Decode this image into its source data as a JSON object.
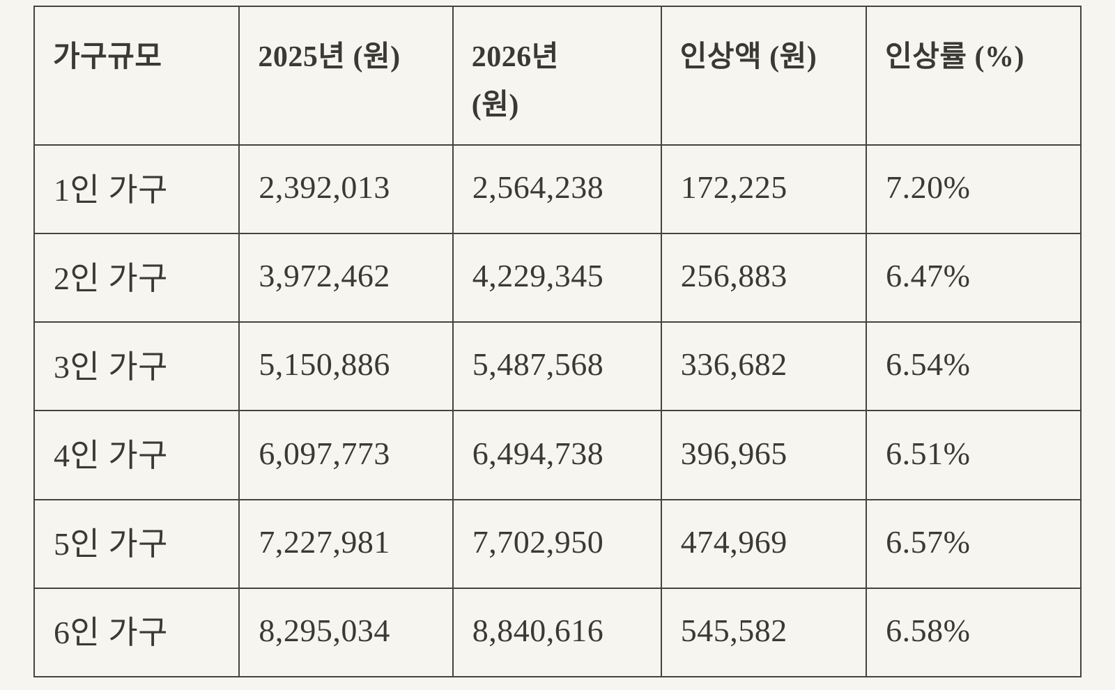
{
  "colors": {
    "background": "#f7f5ef",
    "text": "#3b3933",
    "border": "#45433d"
  },
  "table": {
    "columns": [
      {
        "label": "가구규모"
      },
      {
        "label": "2025년 (원)"
      },
      {
        "label": "2026년\n(원)"
      },
      {
        "label": "인상액 (원)"
      },
      {
        "label": "인상률 (%)"
      }
    ],
    "rows": [
      [
        "1인 가구",
        "2,392,013",
        "2,564,238",
        "172,225",
        "7.20%"
      ],
      [
        "2인 가구",
        "3,972,462",
        "4,229,345",
        "256,883",
        "6.47%"
      ],
      [
        "3인 가구",
        "5,150,886",
        "5,487,568",
        "336,682",
        "6.54%"
      ],
      [
        "4인 가구",
        "6,097,773",
        "6,494,738",
        "396,965",
        "6.51%"
      ],
      [
        "5인 가구",
        "7,227,981",
        "7,702,950",
        "474,969",
        "6.57%"
      ],
      [
        "6인 가구",
        "8,295,034",
        "8,840,616",
        "545,582",
        "6.58%"
      ]
    ]
  }
}
